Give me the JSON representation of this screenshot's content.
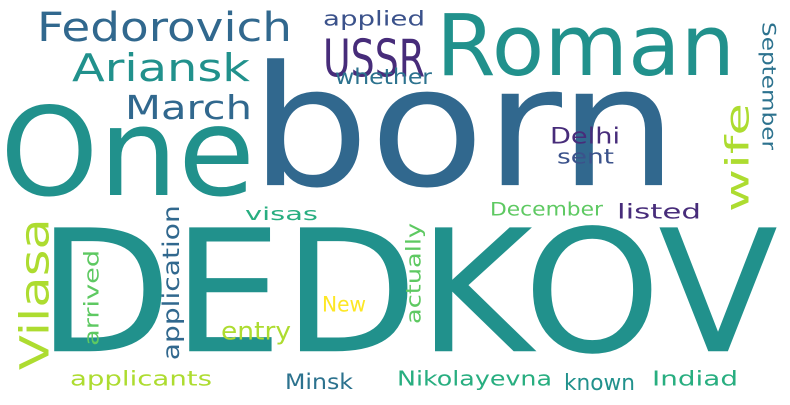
{
  "palette": {
    "background": "#ffffff",
    "dark_purple": "#472c7a",
    "dark_blue": "#3b528b",
    "steel_blue": "#31688e",
    "blue_teal": "#2c728e",
    "teal": "#21918c",
    "green_teal": "#28ae80",
    "green": "#5ec962",
    "lime": "#addc30",
    "yellow": "#fde725"
  },
  "words": {
    "dedkov": "DEDKOV",
    "born": "born",
    "one": "One",
    "roman": "Roman",
    "fedorovich": "Fedorovich",
    "ariansk": "Ariansk",
    "march": "March",
    "ussr": "USSR",
    "applied": "applied",
    "whether": "whether",
    "wife": "wife",
    "september": "September",
    "delhi": "Delhi",
    "sent": "sent",
    "vilasa": "Vilasa",
    "visas": "visas",
    "december": "December",
    "listed": "listed",
    "application": "application",
    "actually": "actually",
    "arrived": "arrived",
    "new": "New",
    "entry": "entry",
    "applicants": "applicants",
    "minsk": "Minsk",
    "nikolayevna": "Nikolayevna",
    "known": "known",
    "indiad": "Indiad"
  }
}
